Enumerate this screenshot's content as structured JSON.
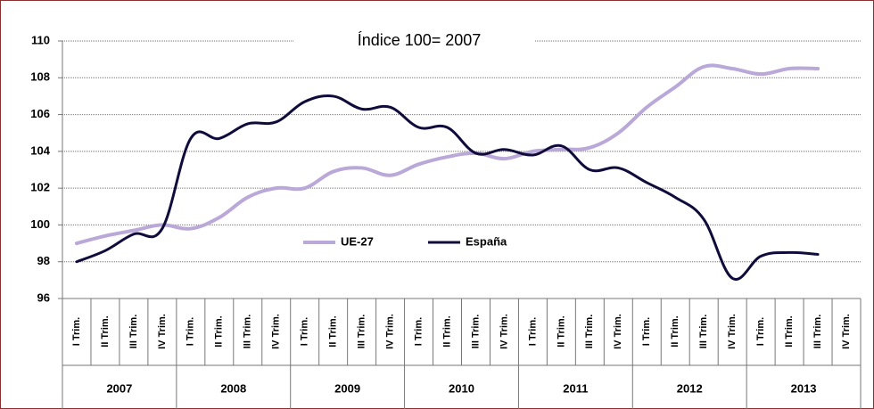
{
  "chart_data": {
    "type": "line",
    "title": "Índice 100= 2007",
    "categories": [
      "I Trim.",
      "II Trim.",
      "III Trim.",
      "IV Trim.",
      "I Trim.",
      "II Trim.",
      "III Trim.",
      "IV Trim.",
      "I Trim.",
      "II Trim.",
      "III Trim.",
      "IV Trim.",
      "I Trim.",
      "II Trim.",
      "III Trim.",
      "IV Trim.",
      "I Trim.",
      "II Trim.",
      "III Trim.",
      "IV Trim.",
      "I Trim.",
      "II Trim.",
      "III Trim.",
      "IV Trim.",
      "I Trim.",
      "II Trim.",
      "III Trim.",
      "IV Trim."
    ],
    "years": [
      "2007",
      "2008",
      "2009",
      "2010",
      "2011",
      "2012",
      "2013"
    ],
    "series": [
      {
        "name": "UE-27",
        "color": "#b9a8d8",
        "values": [
          99.0,
          99.4,
          99.7,
          100.0,
          99.8,
          100.4,
          101.5,
          102.0,
          102.0,
          102.9,
          103.1,
          102.7,
          103.3,
          103.7,
          103.9,
          103.6,
          104.0,
          104.1,
          104.2,
          105.0,
          106.4,
          107.5,
          108.6,
          108.5,
          108.2,
          108.5,
          108.5,
          null
        ]
      },
      {
        "name": "España",
        "color": "#0f0c3c",
        "values": [
          98.0,
          98.6,
          99.5,
          99.8,
          104.7,
          104.7,
          105.5,
          105.6,
          106.7,
          107.0,
          106.3,
          106.4,
          105.3,
          105.3,
          103.9,
          104.1,
          103.8,
          104.3,
          103.0,
          103.1,
          102.3,
          101.5,
          100.3,
          97.1,
          98.3,
          98.5,
          98.4,
          null
        ]
      }
    ],
    "ylim": [
      96,
      110
    ],
    "yticks": [
      96,
      98,
      100,
      102,
      104,
      106,
      108,
      110
    ],
    "grid": true
  }
}
